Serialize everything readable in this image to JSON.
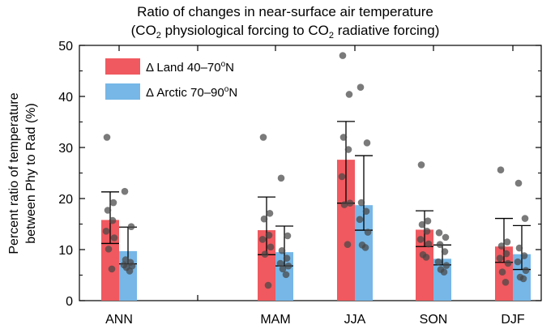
{
  "chart_data": {
    "type": "bar",
    "title_line1": "Ratio of changes in near-surface air temperature",
    "title_line2": {
      "open": "(CO",
      "sub1": "2",
      "mid": " physiological forcing to CO",
      "sub2": "2",
      "end": " radiative forcing)"
    },
    "ylabel_line1": "Percent ratio of temperature",
    "ylabel_line2": "between Phy to Rad (%)",
    "ylim": [
      0,
      50
    ],
    "yticks": [
      0,
      10,
      20,
      30,
      40,
      50
    ],
    "categories": [
      "ANN",
      "",
      "MAM",
      "JJA",
      "SON",
      "DJF"
    ],
    "series": [
      {
        "name": "Δ Land 40–70°N",
        "legend": {
          "prefix": "Δ Land 40–70",
          "sup": "o",
          "suffix": "N"
        },
        "color": "#f0595f",
        "values": [
          15.8,
          null,
          13.8,
          27.6,
          13.9,
          10.6
        ],
        "err_low": [
          11.2,
          null,
          9.0,
          19.1,
          10.6,
          7.5
        ],
        "err_high": [
          21.3,
          null,
          20.3,
          35.1,
          17.6,
          16.1
        ],
        "points": [
          [
            32.0,
            19.2,
            17.7,
            15.7,
            13.6,
            12.3,
            10.1,
            6.2
          ],
          [],
          [
            32.0,
            17.1,
            16.0,
            12.8,
            12.0,
            10.5,
            9.1,
            3.0
          ],
          [
            48.0,
            40.4,
            32.0,
            29.6,
            24.3,
            19.1,
            18.8,
            11.0
          ],
          [
            26.6,
            15.6,
            14.9,
            13.6,
            12.0,
            11.1,
            9.0,
            8.5
          ],
          [
            25.6,
            11.5,
            10.7,
            9.2,
            8.3,
            7.3,
            5.6,
            3.6
          ]
        ]
      },
      {
        "name": "Δ Arctic 70–90°N",
        "legend": {
          "prefix": "Δ Arctic 70–90",
          "sup": "o",
          "suffix": "N"
        },
        "color": "#76b7e7",
        "values": [
          9.7,
          null,
          9.5,
          18.7,
          8.2,
          9.1
        ],
        "err_low": [
          7.2,
          null,
          6.8,
          13.8,
          7.0,
          6.1
        ],
        "err_high": [
          14.4,
          null,
          14.6,
          28.4,
          10.9,
          14.7
        ],
        "points": [
          [
            21.4,
            14.5,
            8.0,
            7.5,
            7.0,
            6.8,
            6.5,
            5.8
          ],
          [],
          [
            24.0,
            12.7,
            9.8,
            8.3,
            7.3,
            6.8,
            6.2,
            5.1
          ],
          [
            41.8,
            30.9,
            19.2,
            17.5,
            15.9,
            13.4,
            10.9,
            10.4
          ],
          [
            13.3,
            12.4,
            11.0,
            9.6,
            7.6,
            6.9,
            6.1,
            5.6
          ],
          [
            23.0,
            16.1,
            10.3,
            8.8,
            7.6,
            5.9,
            4.6,
            4.3
          ]
        ]
      }
    ]
  }
}
